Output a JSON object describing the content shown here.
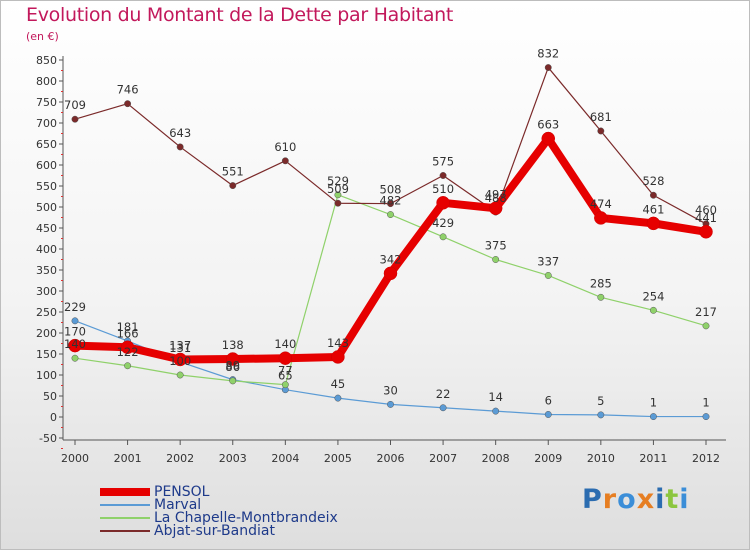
{
  "title": "Evolution du Montant de la Dette par Habitant",
  "unit": "(en €)",
  "logo": {
    "text": "Proxiti",
    "letters": [
      {
        "ch": "P",
        "color": "#2b6cb0"
      },
      {
        "ch": "r",
        "color": "#e67e22"
      },
      {
        "ch": "o",
        "color": "#3b8ed8"
      },
      {
        "ch": "x",
        "color": "#e67e22"
      },
      {
        "ch": "i",
        "color": "#2b6cb0"
      },
      {
        "ch": "t",
        "color": "#8cc63f"
      },
      {
        "ch": "i",
        "color": "#3b8ed8"
      }
    ]
  },
  "chart_data": {
    "type": "line",
    "x": [
      2000,
      2001,
      2002,
      2003,
      2004,
      2005,
      2006,
      2007,
      2008,
      2009,
      2010,
      2011,
      2012
    ],
    "ylim": [
      -50,
      850
    ],
    "yticks": [
      -50,
      0,
      50,
      100,
      150,
      200,
      250,
      300,
      350,
      400,
      450,
      500,
      550,
      600,
      650,
      700,
      750,
      800,
      850
    ],
    "grid": false,
    "legend_position": "bottom-left",
    "series": [
      {
        "name": "PENSOL",
        "color": "#e60000",
        "values": [
          170,
          166,
          137,
          138,
          140,
          143,
          342,
          510,
          497,
          663,
          474,
          461,
          441
        ],
        "width": 8,
        "markers": true
      },
      {
        "name": "Marval",
        "color": "#5b9bd5",
        "values": [
          229,
          181,
          131,
          89,
          65,
          45,
          30,
          22,
          14,
          6,
          5,
          1,
          1
        ],
        "width": 1.2,
        "markers": true
      },
      {
        "name": "La Chapelle-Montbrandeix",
        "color": "#8fd16a",
        "values": [
          140,
          122,
          100,
          86,
          77,
          529,
          482,
          429,
          375,
          337,
          285,
          254,
          217
        ],
        "width": 1.2,
        "markers": true
      },
      {
        "name": "Abjat-sur-Bandiat",
        "color": "#7b2a2a",
        "values": [
          709,
          746,
          643,
          551,
          610,
          509,
          508,
          575,
          488,
          832,
          681,
          528,
          460
        ],
        "width": 1.2,
        "markers": true
      }
    ]
  }
}
